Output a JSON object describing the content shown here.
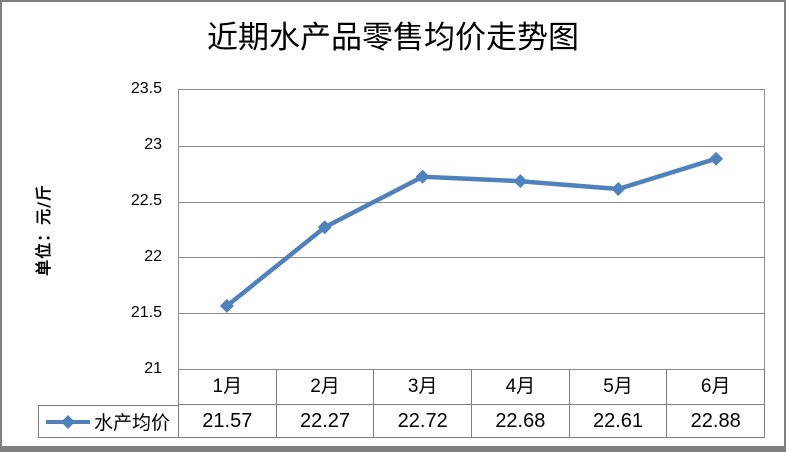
{
  "title": {
    "text": "近期水产品零售均价走势图"
  },
  "y_axis": {
    "label": "单位：元/斤",
    "tick_labels": [
      "23.5",
      "23",
      "22.5",
      "22",
      "21.5",
      "21"
    ]
  },
  "legend": {
    "series_label": "水产均价"
  },
  "data_table": {
    "headers": [
      "1月",
      "2月",
      "3月",
      "4月",
      "5月",
      "6月"
    ],
    "values": [
      "21.57",
      "22.27",
      "22.72",
      "22.68",
      "22.61",
      "22.88"
    ]
  },
  "chart_data": {
    "type": "line",
    "title": "近期水产品零售均价走势图",
    "categories": [
      "1月",
      "2月",
      "3月",
      "4月",
      "5月",
      "6月"
    ],
    "series": [
      {
        "name": "水产均价",
        "values": [
          21.57,
          22.27,
          22.72,
          22.68,
          22.61,
          22.88
        ]
      }
    ],
    "xlabel": "",
    "ylabel": "单位：元/斤",
    "ylim": [
      21,
      23.5
    ],
    "ytick_step": 0.5,
    "grid": true,
    "marker": "diamond",
    "legend_position": "bottom-left-of-data-table"
  },
  "colors": {
    "line": "#4F81BD",
    "gridline": "#8c8c8c",
    "table_border": "#7f7f7f",
    "frame": "#7f7f7f",
    "text": "#000000",
    "background": "#ffffff"
  }
}
